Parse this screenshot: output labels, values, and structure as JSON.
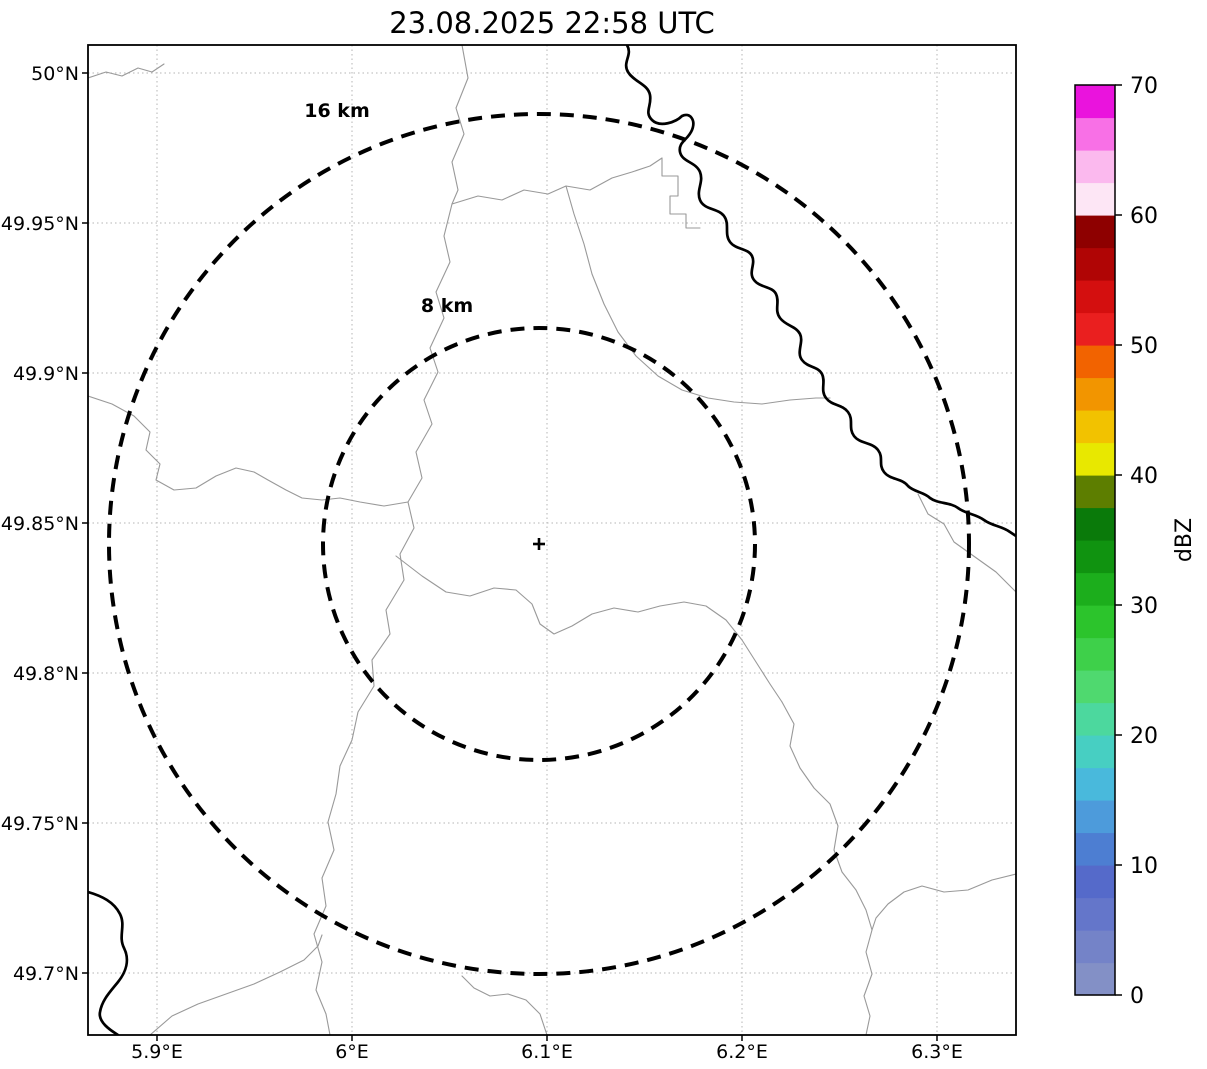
{
  "title": "23.08.2025 22:58 UTC",
  "plot": {
    "x_tick_labels": [
      "5.9°E",
      "6°E",
      "6.1°E",
      "6.2°E",
      "6.3°E"
    ],
    "y_tick_labels": [
      "50°N",
      "49.95°N",
      "49.9°N",
      "49.85°N",
      "49.8°N",
      "49.75°N",
      "49.7°N"
    ],
    "ring_labels": [
      "16 km",
      "8 km"
    ],
    "center_marker": "+"
  },
  "colorbar": {
    "label": "dBZ",
    "tick_labels": [
      "0",
      "10",
      "20",
      "30",
      "40",
      "50",
      "60",
      "70"
    ],
    "colors_bottom_to_top": [
      "#8390c6",
      "#7483c8",
      "#6476ca",
      "#556aca",
      "#4d7ed2",
      "#4d9bdb",
      "#49b9dc",
      "#47cfc2",
      "#4cd89e",
      "#4fd96f",
      "#3ed04a",
      "#2cc42c",
      "#1cae1c",
      "#109310",
      "#0a7a0a",
      "#5d7e00",
      "#e8e800",
      "#f2c200",
      "#f29500",
      "#f26300",
      "#ea1f1f",
      "#d40f0f",
      "#b00505",
      "#8e0000",
      "#fde6f5",
      "#fbb9ee",
      "#f870e6",
      "#ea13dd"
    ]
  },
  "chart_data": {
    "type": "map",
    "subtype": "weather-radar-ppi-display",
    "title": "23.08.2025 22:58 UTC",
    "x_axis": {
      "tick_labels": [
        "5.9°E",
        "6°E",
        "6.1°E",
        "6.2°E",
        "6.3°E"
      ],
      "approx_range_deg_east": [
        5.86,
        6.34
      ]
    },
    "y_axis": {
      "tick_labels": [
        "50°N",
        "49.95°N",
        "49.9°N",
        "49.85°N",
        "49.8°N",
        "49.75°N",
        "49.7°N"
      ],
      "approx_range_deg_north": [
        49.68,
        50.01
      ]
    },
    "grid": "dotted",
    "range_rings": [
      {
        "label": "16 km",
        "radius_km": 16,
        "style": "dashed"
      },
      {
        "label": "8 km",
        "radius_km": 8,
        "style": "dashed"
      }
    ],
    "radar_site_marker": {
      "symbol": "+",
      "approx_lon_e": 6.1,
      "approx_lat_n": 49.84
    },
    "colorbar": {
      "label": "dBZ",
      "min": 0,
      "max": 70,
      "tick_values": [
        0,
        10,
        20,
        30,
        40,
        50,
        60,
        70
      ],
      "n_color_steps": 28,
      "orientation": "vertical-right"
    },
    "map_features": [
      "thin gray administrative boundary lines",
      "thick black river / national border line"
    ],
    "radar_echoes": "none visible"
  }
}
